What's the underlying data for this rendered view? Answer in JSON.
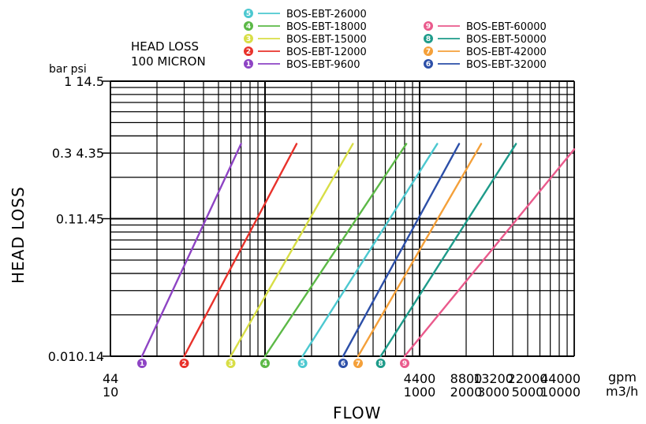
{
  "chart_data": {
    "type": "line",
    "title": [
      "HEAD LOSS",
      "100 MICRON"
    ],
    "xlabel": "FLOW",
    "ylabel": "HEAD LOSS",
    "x_scale": "log",
    "y_scale": "log",
    "x_unit": "m3/h",
    "x_unit_alt": "gpm",
    "y_unit_header": "bar psi",
    "xlim": [
      10,
      10000
    ],
    "ylim": [
      0.01,
      1
    ],
    "x_ticks": [
      {
        "value": 10,
        "label_gpm": "44",
        "label_m3h": "10"
      },
      {
        "value": 1000,
        "label_gpm": "4400",
        "label_m3h": "1000"
      },
      {
        "value": 2000,
        "label_gpm": "8800",
        "label_m3h": "2000"
      },
      {
        "value": 3000,
        "label_gpm": "13200",
        "label_m3h": "3000"
      },
      {
        "value": 5000,
        "label_gpm": "22000",
        "label_m3h": "5000"
      },
      {
        "value": 10000,
        "label_gpm": "44000",
        "label_m3h": "10000"
      }
    ],
    "y_ticks": [
      {
        "value": 1,
        "label": "1 14.5"
      },
      {
        "value": 0.3,
        "label": "0.3 4.35"
      },
      {
        "value": 0.1,
        "label": "0.11.45"
      },
      {
        "value": 0.01,
        "label": "0.010.14"
      }
    ],
    "series": [
      {
        "marker": "1",
        "name": "BOS-EBT-9600",
        "color": "#8e44c4",
        "start": [
          16,
          0.01
        ],
        "end": [
          70,
          0.35
        ]
      },
      {
        "marker": "2",
        "name": "BOS-EBT-12000",
        "color": "#e8322b",
        "start": [
          30,
          0.01
        ],
        "end": [
          160,
          0.35
        ]
      },
      {
        "marker": "3",
        "name": "BOS-EBT-15000",
        "color": "#d8de46",
        "start": [
          60,
          0.01
        ],
        "end": [
          370,
          0.35
        ]
      },
      {
        "marker": "4",
        "name": "BOS-EBT-18000",
        "color": "#5cb947",
        "start": [
          100,
          0.01
        ],
        "end": [
          820,
          0.35
        ]
      },
      {
        "marker": "5",
        "name": "BOS-EBT-26000",
        "color": "#4cc8d0",
        "start": [
          175,
          0.01
        ],
        "end": [
          1300,
          0.35
        ]
      },
      {
        "marker": "6",
        "name": "BOS-EBT-32000",
        "color": "#2c4fa8",
        "start": [
          320,
          0.01
        ],
        "end": [
          1800,
          0.35
        ]
      },
      {
        "marker": "7",
        "name": "BOS-EBT-42000",
        "color": "#f4a03a",
        "start": [
          400,
          0.01
        ],
        "end": [
          2500,
          0.35
        ]
      },
      {
        "marker": "8",
        "name": "BOS-EBT-50000",
        "color": "#1e9b8a",
        "start": [
          560,
          0.01
        ],
        "end": [
          4200,
          0.35
        ]
      },
      {
        "marker": "9",
        "name": "BOS-EBT-60000",
        "color": "#ea5a8c",
        "start": [
          800,
          0.01
        ],
        "end": [
          10000,
          0.32
        ]
      }
    ],
    "legend": {
      "left": [
        "5",
        "4",
        "3",
        "2",
        "1"
      ],
      "right": [
        "9",
        "8",
        "7",
        "6"
      ]
    }
  }
}
